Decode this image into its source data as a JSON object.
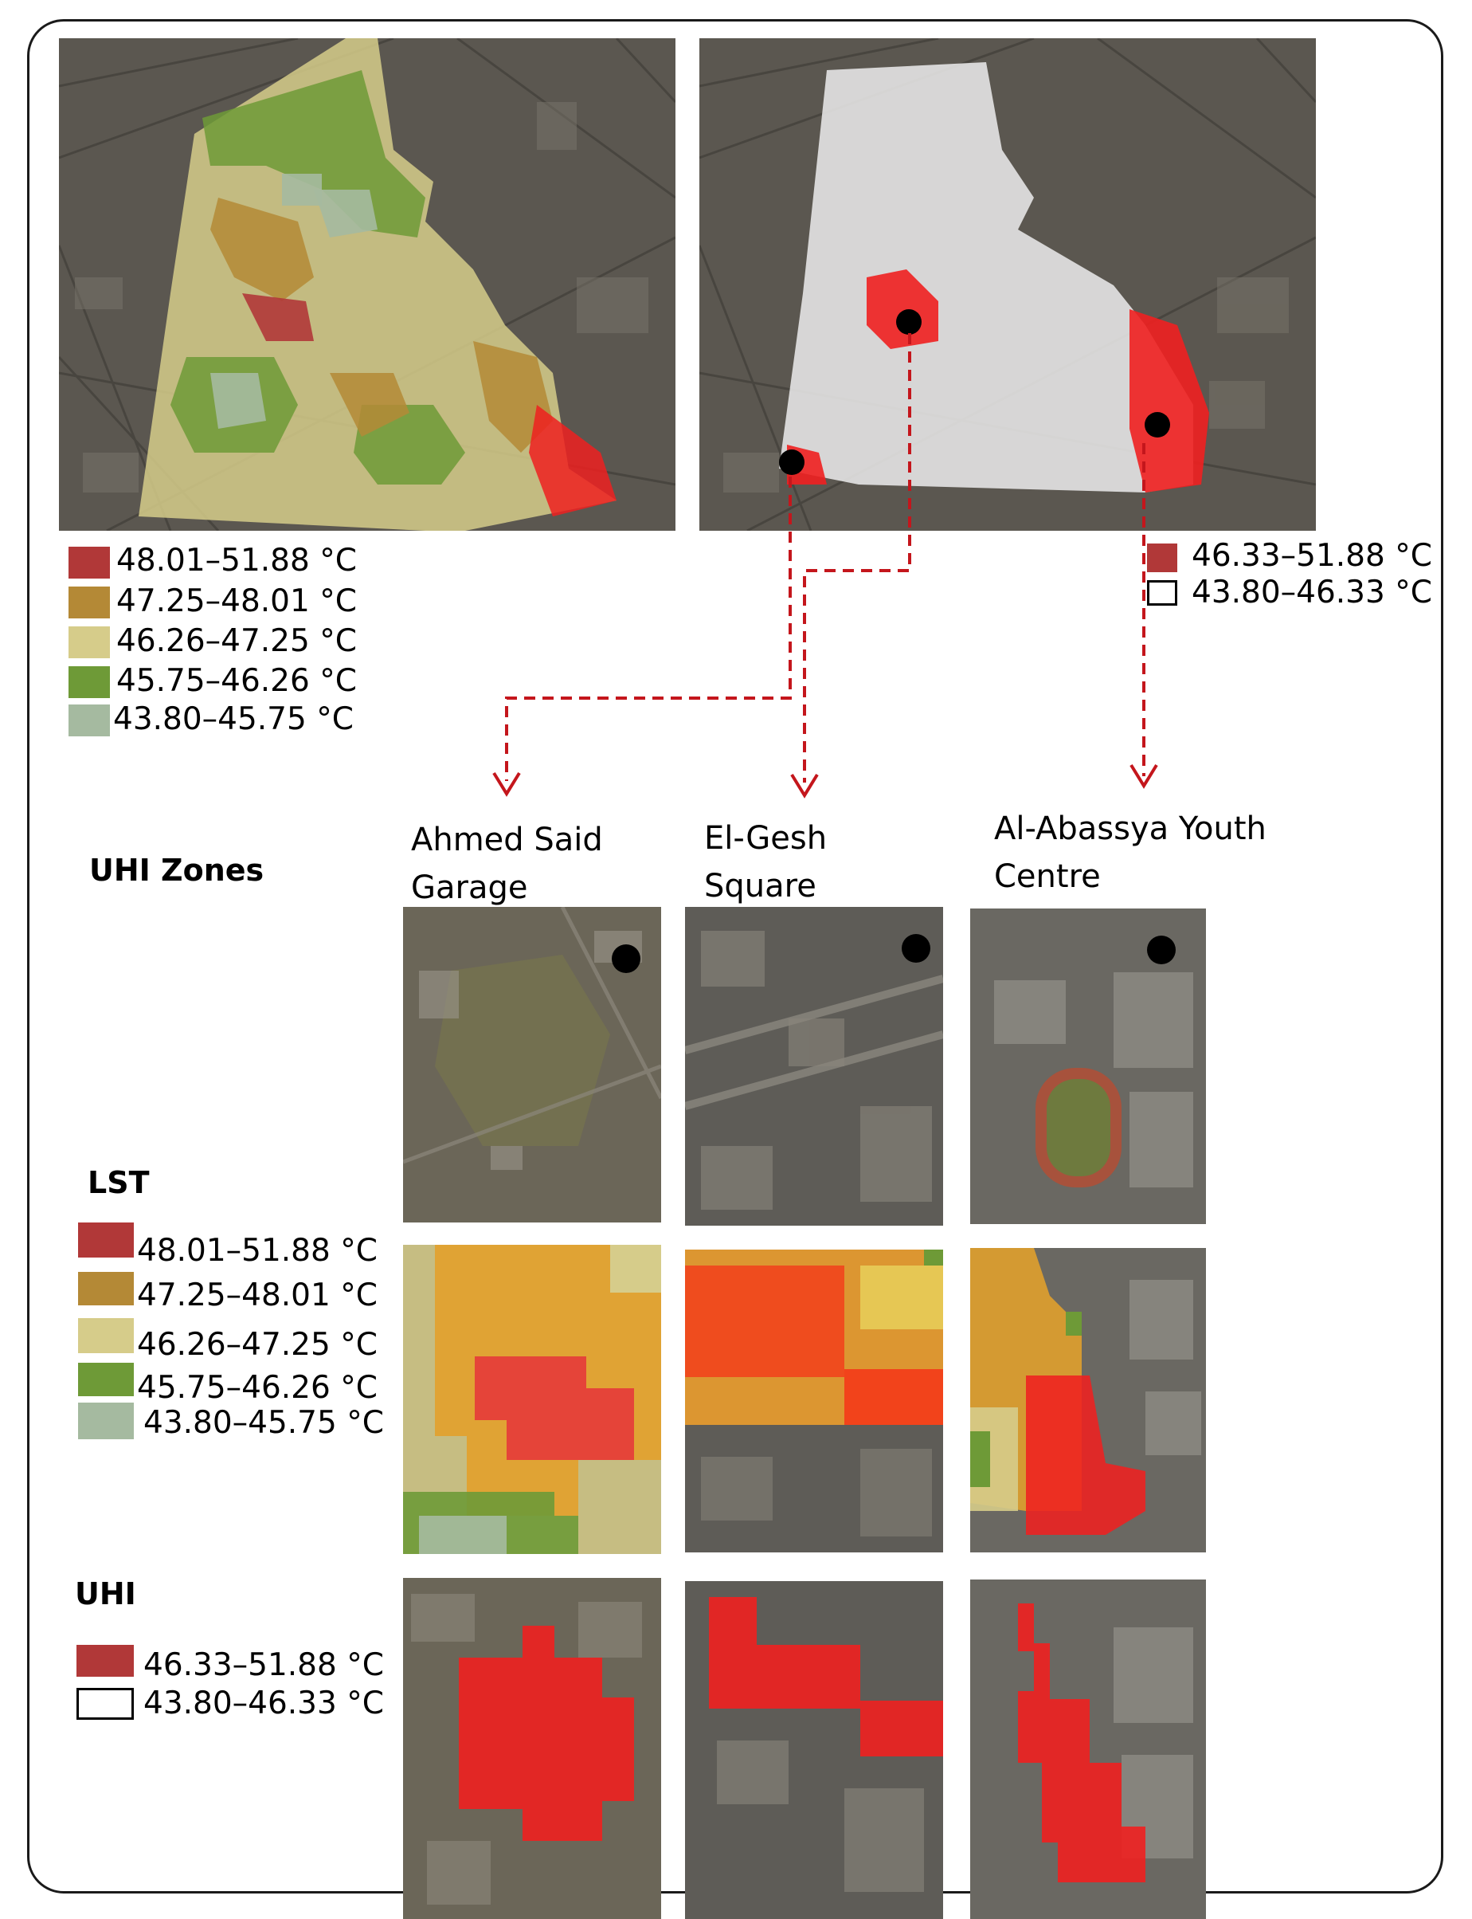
{
  "colors": {
    "class1": "#b13838",
    "class2": "#b48936",
    "class3": "#d6cc8a",
    "class4": "#6e9a37",
    "class5": "#a5baa0",
    "uhi": "#ef2020",
    "arrow": "#c4161c"
  },
  "lst_legend": [
    {
      "label": "48.01–51.88 °C",
      "color": "#b13838"
    },
    {
      "label": "47.25–48.01 °C",
      "color": "#b48936"
    },
    {
      "label": "46.26–47.25 °C",
      "color": "#d6cc8a"
    },
    {
      "label": "45.75–46.26 °C",
      "color": "#6e9a37"
    },
    {
      "label": "43.80–45.75 °C",
      "color": "#a5baa0"
    }
  ],
  "uhi_legend": [
    {
      "label": "46.33–51.88 °C",
      "color": "#b13838"
    },
    {
      "label": "43.80–46.33 °C",
      "color": "none"
    }
  ],
  "row_titles": {
    "zones": "UHI Zones",
    "lst": "LST",
    "uhi": "UHI"
  },
  "sites": [
    {
      "line1": "Ahmed Said",
      "line2": "Garage"
    },
    {
      "line1": "El-Gesh",
      "line2": "Square"
    },
    {
      "line1": "Al-Abassya Youth",
      "line2": "Centre"
    }
  ]
}
